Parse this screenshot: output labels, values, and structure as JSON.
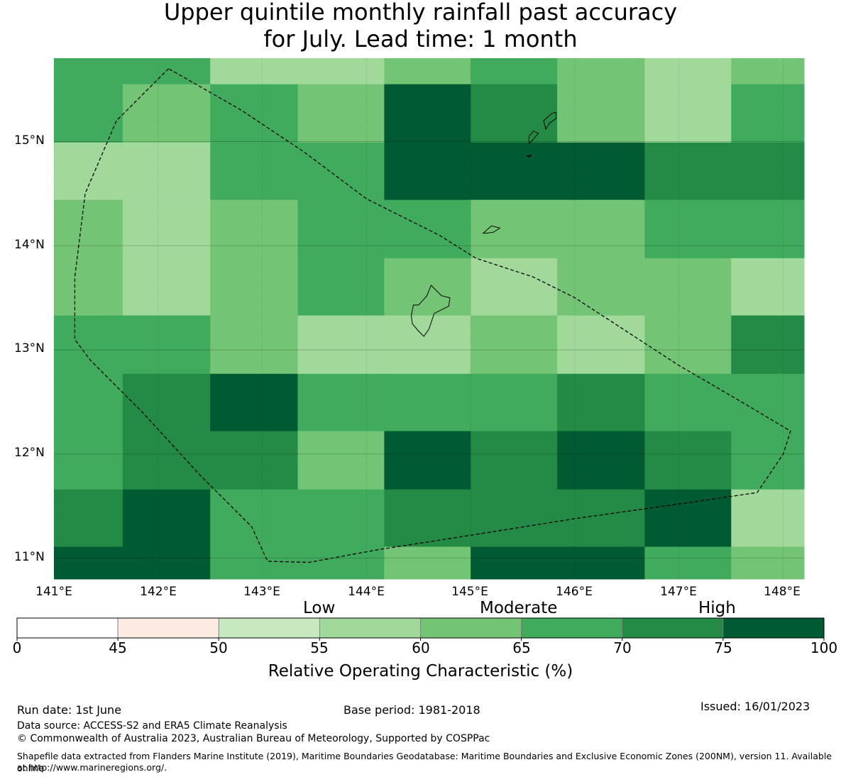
{
  "title": {
    "line1": "Upper quintile monthly rainfall past accuracy",
    "line2": "for July. Lead time: 1 month"
  },
  "map": {
    "lat_labels": [
      "15°N",
      "14°N",
      "13°N",
      "12°N",
      "11°N"
    ],
    "lon_labels": [
      "141°E",
      "142°E",
      "143°E",
      "144°E",
      "145°E",
      "146°E",
      "147°E",
      "148°E"
    ],
    "extent": {
      "lon_min": 141.0,
      "lon_max": 148.2,
      "lat_min": 10.8,
      "lat_max": 15.8
    },
    "grid_cells": {
      "lon_edges": [
        141.0,
        141.66,
        142.5,
        143.34,
        144.17,
        145.0,
        145.83,
        146.67,
        147.5,
        148.2
      ],
      "lat_edges": [
        15.8,
        15.55,
        14.99,
        14.44,
        13.88,
        13.33,
        12.77,
        12.22,
        11.66,
        11.11,
        10.8
      ],
      "values": [
        [
          67,
          67,
          57,
          57,
          62,
          67,
          62,
          57,
          62
        ],
        [
          67,
          62,
          67,
          62,
          80,
          72,
          62,
          57,
          67
        ],
        [
          57,
          57,
          67,
          67,
          80,
          80,
          80,
          72,
          72
        ],
        [
          62,
          57,
          62,
          67,
          67,
          62,
          62,
          67,
          67
        ],
        [
          62,
          57,
          62,
          67,
          62,
          57,
          62,
          62,
          57
        ],
        [
          67,
          67,
          62,
          57,
          57,
          62,
          57,
          62,
          72
        ],
        [
          67,
          72,
          80,
          67,
          67,
          67,
          72,
          67,
          67
        ],
        [
          67,
          72,
          72,
          62,
          80,
          72,
          80,
          72,
          67
        ],
        [
          72,
          80,
          67,
          67,
          72,
          72,
          72,
          80,
          57
        ],
        [
          80,
          80,
          67,
          67,
          62,
          80,
          80,
          67,
          62
        ]
      ]
    },
    "boundary_label": "",
    "boundary_polygon": [
      [
        142.1,
        15.7
      ],
      [
        141.6,
        15.2
      ],
      [
        141.3,
        14.5
      ],
      [
        141.2,
        13.7
      ],
      [
        141.2,
        13.1
      ],
      [
        141.35,
        12.9
      ],
      [
        141.85,
        12.4
      ],
      [
        142.4,
        11.8
      ],
      [
        142.9,
        11.3
      ],
      [
        143.05,
        10.97
      ],
      [
        143.45,
        10.96
      ],
      [
        144.1,
        11.08
      ],
      [
        145.0,
        11.22
      ],
      [
        146.0,
        11.38
      ],
      [
        147.0,
        11.52
      ],
      [
        147.75,
        11.63
      ],
      [
        148.0,
        12.0
      ],
      [
        148.07,
        12.22
      ],
      [
        147.6,
        12.5
      ],
      [
        147.0,
        12.85
      ],
      [
        146.0,
        13.5
      ],
      [
        145.6,
        13.7
      ],
      [
        145.05,
        13.88
      ],
      [
        144.7,
        14.1
      ],
      [
        144.0,
        14.45
      ],
      [
        143.4,
        14.9
      ],
      [
        142.8,
        15.3
      ]
    ],
    "islands": [
      {
        "name": "Guam",
        "points": [
          [
            144.62,
            13.62
          ],
          [
            144.72,
            13.52
          ],
          [
            144.8,
            13.5
          ],
          [
            144.79,
            13.42
          ],
          [
            144.65,
            13.35
          ],
          [
            144.6,
            13.2
          ],
          [
            144.55,
            13.13
          ],
          [
            144.5,
            13.18
          ],
          [
            144.44,
            13.25
          ],
          [
            144.43,
            13.33
          ],
          [
            144.45,
            13.43
          ],
          [
            144.5,
            13.43
          ],
          [
            144.58,
            13.52
          ]
        ]
      },
      {
        "name": "Rota",
        "points": [
          [
            145.12,
            14.12
          ],
          [
            145.2,
            14.19
          ],
          [
            145.28,
            14.17
          ],
          [
            145.22,
            14.13
          ],
          [
            145.15,
            14.12
          ]
        ]
      },
      {
        "name": "Tinian",
        "points": [
          [
            145.6,
            15.02
          ],
          [
            145.65,
            15.08
          ],
          [
            145.6,
            15.1
          ],
          [
            145.56,
            15.05
          ],
          [
            145.56,
            14.98
          ]
        ]
      },
      {
        "name": "Saipan",
        "points": [
          [
            145.72,
            15.12
          ],
          [
            145.7,
            15.2
          ],
          [
            145.78,
            15.27
          ],
          [
            145.82,
            15.28
          ],
          [
            145.82,
            15.22
          ],
          [
            145.76,
            15.18
          ]
        ]
      },
      {
        "name": "Aguijan",
        "points": [
          [
            145.54,
            14.86
          ],
          [
            145.58,
            14.87
          ],
          [
            145.56,
            14.85
          ]
        ]
      }
    ]
  },
  "colorbar": {
    "category_labels": {
      "low": "Low",
      "moderate": "Moderate",
      "high": "High"
    },
    "ticks": [
      "0",
      "45",
      "50",
      "55",
      "60",
      "65",
      "70",
      "75",
      "100"
    ],
    "colors": [
      "#ffffff",
      "#fdebe1",
      "#c7e9c0",
      "#a1d99b",
      "#74c476",
      "#41ab5d",
      "#238b45",
      "#005a32"
    ],
    "label": "Relative Operating Characteristic (%)"
  },
  "footer": {
    "run_date": "Run date: 1st June",
    "base_period": "Base period: 1981-2018",
    "issued": "Issued: 16/01/2023",
    "data_source": "Data source: ACCESS-S2 and ERA5 Climate Reanalysis",
    "copyright": "© Commonwealth of Australia 2023, Australian Bureau of Meteorology, Supported by COSPPac",
    "shapefile_1": "Shapefile data extracted from Flanders Marine Institute (2019), Maritime Boundaries Geodatabase: Maritime Boundaries and Exclusive Economic Zones (200NM), version 11. Available online",
    "shapefile_2": "at http://www.marineregions.org/."
  }
}
